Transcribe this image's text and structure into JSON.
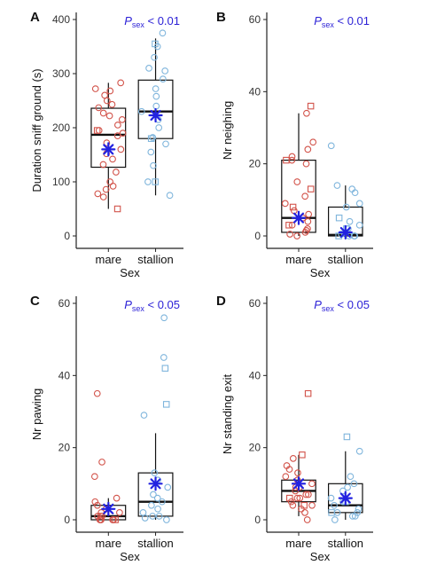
{
  "chart_data": [
    {
      "type": "box",
      "panel": "A",
      "ylabel": "Duration sniff ground (s)",
      "xlabel": "Sex",
      "categories": [
        "mare",
        "stallion"
      ],
      "ylim": [
        0,
        400
      ],
      "yticks": [
        0,
        100,
        200,
        300,
        400
      ],
      "annotation": {
        "p": "P",
        "sub": "sex",
        "rest": " < 0.01"
      },
      "boxes": [
        {
          "category": "mare",
          "whisker_low": 50,
          "q1": 127,
          "median": 187,
          "q3": 236,
          "whisker_high": 283,
          "mean": 160,
          "circles": [
            283,
            272,
            268,
            260,
            250,
            243,
            237,
            227,
            222,
            215,
            205,
            195,
            190,
            185,
            172,
            160,
            152,
            142,
            132,
            118,
            100,
            92,
            86,
            78,
            72
          ],
          "squares": [
            195,
            50
          ]
        },
        {
          "category": "stallion",
          "whisker_low": 75,
          "q1": 180,
          "median": 230,
          "q3": 288,
          "whisker_high": 365,
          "mean": 223,
          "circles": [
            375,
            350,
            330,
            310,
            305,
            290,
            272,
            258,
            240,
            230,
            215,
            200,
            182,
            170,
            155,
            130,
            100,
            75
          ],
          "squares": [
            355,
            180,
            100
          ]
        }
      ]
    },
    {
      "type": "box",
      "panel": "B",
      "ylabel": "Nr neighing",
      "xlabel": "Sex",
      "categories": [
        "mare",
        "stallion"
      ],
      "ylim": [
        0,
        60
      ],
      "yticks": [
        0,
        20,
        40,
        60
      ],
      "annotation": {
        "p": "P",
        "sub": "sex",
        "rest": " < 0.01"
      },
      "boxes": [
        {
          "category": "mare",
          "whisker_low": 0,
          "q1": 1,
          "median": 5,
          "q3": 21,
          "whisker_high": 34,
          "mean": 5,
          "circles": [
            34,
            26,
            24,
            22,
            21,
            20,
            15,
            11,
            9,
            7,
            6,
            5,
            4,
            3,
            2,
            1.5,
            1,
            0.5,
            0
          ],
          "squares": [
            36,
            21,
            13,
            8,
            3
          ]
        },
        {
          "category": "stallion",
          "whisker_low": 0,
          "q1": 0,
          "median": 0.3,
          "q3": 8,
          "whisker_high": 14,
          "mean": 1,
          "circles": [
            25,
            14,
            13,
            12,
            9,
            8,
            4,
            3,
            2,
            1,
            0.5,
            0,
            0,
            0
          ],
          "squares": [
            5,
            2,
            0
          ]
        }
      ]
    },
    {
      "type": "box",
      "panel": "C",
      "ylabel": "Nr pawing",
      "xlabel": "Sex",
      "categories": [
        "mare",
        "stallion"
      ],
      "ylim": [
        0,
        60
      ],
      "yticks": [
        0,
        20,
        40,
        60
      ],
      "annotation": {
        "p": "P",
        "sub": "sex",
        "rest": " < 0.05"
      },
      "boxes": [
        {
          "category": "mare",
          "whisker_low": 0,
          "q1": 0,
          "median": 1,
          "q3": 4,
          "whisker_high": 6,
          "mean": 3,
          "circles": [
            35,
            16,
            12,
            6,
            5,
            4,
            3,
            2,
            2,
            1,
            1,
            0,
            0,
            0,
            0,
            0
          ],
          "squares": [
            1,
            0
          ]
        },
        {
          "category": "stallion",
          "whisker_low": 0,
          "q1": 1,
          "median": 5,
          "q3": 13,
          "whisker_high": 24,
          "mean": 10,
          "circles": [
            56,
            45,
            29,
            13,
            11,
            9,
            7,
            6,
            5,
            4,
            3,
            2,
            1,
            1,
            0.5,
            0
          ],
          "squares": [
            42,
            32
          ]
        }
      ]
    },
    {
      "type": "box",
      "panel": "D",
      "ylabel": "Nr standing exit",
      "xlabel": "Sex",
      "categories": [
        "mare",
        "stallion"
      ],
      "ylim": [
        0,
        60
      ],
      "yticks": [
        0,
        20,
        40,
        60
      ],
      "annotation": {
        "p": "P",
        "sub": "sex",
        "rest": " < 0.05"
      },
      "boxes": [
        {
          "category": "mare",
          "whisker_low": 1,
          "q1": 5,
          "median": 8,
          "q3": 11,
          "whisker_high": 18,
          "mean": 10,
          "circles": [
            17,
            15,
            14,
            13,
            12,
            11,
            10,
            9,
            9,
            8,
            7,
            7,
            6,
            6,
            5,
            4,
            4,
            3,
            2,
            0
          ],
          "squares": [
            35,
            18,
            6,
            4
          ]
        },
        {
          "category": "stallion",
          "whisker_low": 0,
          "q1": 2,
          "median": 4,
          "q3": 10,
          "whisker_high": 19,
          "mean": 6,
          "circles": [
            19,
            12,
            10,
            9,
            8,
            6,
            5,
            4,
            3,
            2,
            2,
            1,
            1,
            0
          ],
          "squares": [
            23,
            5,
            2
          ]
        }
      ]
    }
  ],
  "colors": {
    "mare": "#d2534a",
    "stallion": "#7fb5dc",
    "mean_marker": "#2222e0",
    "annotation": "#2a1fd6",
    "box": "#111111"
  }
}
